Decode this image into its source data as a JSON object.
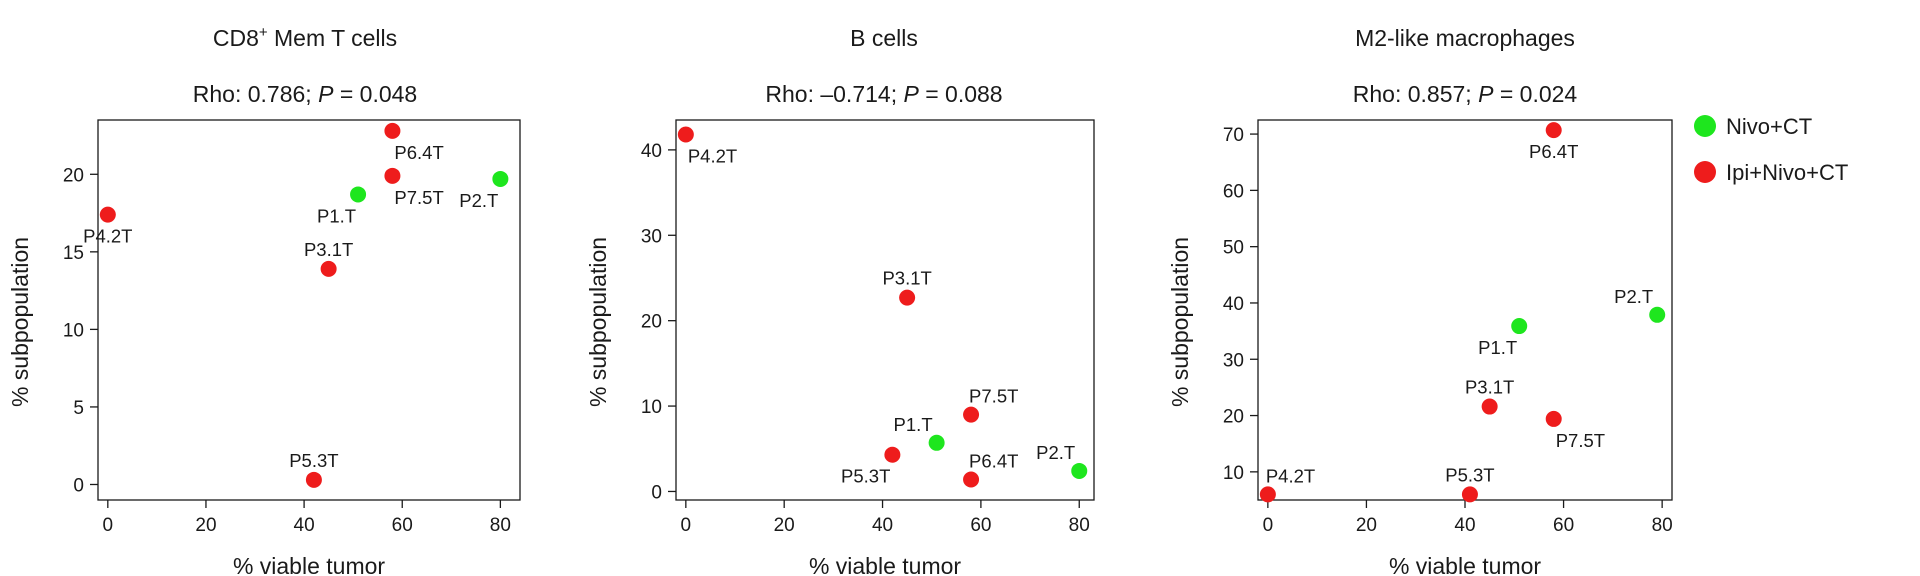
{
  "legend": {
    "position": "right",
    "entries": [
      {
        "name": "Nivo+CT",
        "color": "#1ee61e"
      },
      {
        "name": "Ipi+Nivo+CT",
        "color": "#ee1c1c"
      }
    ]
  },
  "chart_data": [
    {
      "type": "scatter",
      "title": "CD8",
      "title_sup": "+",
      "title_rest": " Mem T cells",
      "subtitle_pre": "Rho: 0.786; ",
      "subtitle_p": "P",
      "subtitle_post": " = 0.048",
      "xlabel": "% viable tumor",
      "ylabel": "% subpopulation",
      "xlim": [
        -2,
        84
      ],
      "ylim": [
        -1,
        23.5
      ],
      "xticks": [
        0,
        20,
        40,
        60,
        80
      ],
      "yticks": [
        0,
        5,
        10,
        15,
        20
      ],
      "grid": false,
      "points": [
        {
          "label": "P4.2T",
          "x": 0,
          "y": 17.4,
          "group": "Ipi+Nivo+CT",
          "label_pos": "below"
        },
        {
          "label": "P3.1T",
          "x": 45,
          "y": 13.9,
          "group": "Ipi+Nivo+CT",
          "label_pos": "above"
        },
        {
          "label": "P5.3T",
          "x": 42,
          "y": 0.3,
          "group": "Ipi+Nivo+CT",
          "label_pos": "above"
        },
        {
          "label": "P1.T",
          "x": 51,
          "y": 18.7,
          "group": "Nivo+CT",
          "label_pos": "below-left"
        },
        {
          "label": "P6.4T",
          "x": 58,
          "y": 22.8,
          "group": "Ipi+Nivo+CT",
          "label_pos": "below-right"
        },
        {
          "label": "P7.5T",
          "x": 58,
          "y": 19.9,
          "group": "Ipi+Nivo+CT",
          "label_pos": "below-right"
        },
        {
          "label": "P2.T",
          "x": 80,
          "y": 19.7,
          "group": "Nivo+CT",
          "label_pos": "below-left"
        }
      ]
    },
    {
      "type": "scatter",
      "title": "B cells",
      "title_sup": "",
      "title_rest": "",
      "subtitle_pre": "Rho: –0.714; ",
      "subtitle_p": "P",
      "subtitle_post": " = 0.088",
      "xlabel": "% viable tumor",
      "ylabel": "% subpopulation",
      "xlim": [
        -2,
        83
      ],
      "ylim": [
        -1,
        43.5
      ],
      "xticks": [
        0,
        20,
        40,
        60,
        80
      ],
      "yticks": [
        0,
        10,
        20,
        30,
        40
      ],
      "grid": false,
      "points": [
        {
          "label": "P4.2T",
          "x": 0,
          "y": 41.8,
          "group": "Ipi+Nivo+CT",
          "label_pos": "below-right"
        },
        {
          "label": "P3.1T",
          "x": 45,
          "y": 22.7,
          "group": "Ipi+Nivo+CT",
          "label_pos": "above"
        },
        {
          "label": "P7.5T",
          "x": 58,
          "y": 9.0,
          "group": "Ipi+Nivo+CT",
          "label_pos": "above-right"
        },
        {
          "label": "P1.T",
          "x": 51,
          "y": 5.7,
          "group": "Nivo+CT",
          "label_pos": "above-left"
        },
        {
          "label": "P5.3T",
          "x": 42,
          "y": 4.3,
          "group": "Ipi+Nivo+CT",
          "label_pos": "below-left"
        },
        {
          "label": "P6.4T",
          "x": 58,
          "y": 1.4,
          "group": "Ipi+Nivo+CT",
          "label_pos": "above-right"
        },
        {
          "label": "P2.T",
          "x": 80,
          "y": 2.4,
          "group": "Nivo+CT",
          "label_pos": "above-left"
        }
      ]
    },
    {
      "type": "scatter",
      "title": "M2-like macrophages",
      "title_sup": "",
      "title_rest": "",
      "subtitle_pre": "Rho: 0.857; ",
      "subtitle_p": "P",
      "subtitle_post": " = 0.024",
      "xlabel": "% viable tumor",
      "ylabel": "% subpopulation",
      "xlim": [
        -2,
        82
      ],
      "ylim": [
        5,
        72.5
      ],
      "xticks": [
        0,
        20,
        40,
        60,
        80
      ],
      "yticks": [
        10,
        20,
        30,
        40,
        50,
        60,
        70
      ],
      "grid": false,
      "points": [
        {
          "label": "P6.4T",
          "x": 58,
          "y": 70.7,
          "group": "Ipi+Nivo+CT",
          "label_pos": "below"
        },
        {
          "label": "P2.T",
          "x": 79,
          "y": 37.9,
          "group": "Nivo+CT",
          "label_pos": "above-left"
        },
        {
          "label": "P1.T",
          "x": 51,
          "y": 35.9,
          "group": "Nivo+CT",
          "label_pos": "below-left"
        },
        {
          "label": "P3.1T",
          "x": 45,
          "y": 21.6,
          "group": "Ipi+Nivo+CT",
          "label_pos": "above"
        },
        {
          "label": "P7.5T",
          "x": 58,
          "y": 19.4,
          "group": "Ipi+Nivo+CT",
          "label_pos": "below-right"
        },
        {
          "label": "P4.2T",
          "x": 0,
          "y": 6.0,
          "group": "Ipi+Nivo+CT",
          "label_pos": "above-right"
        },
        {
          "label": "P5.3T",
          "x": 41,
          "y": 6.0,
          "group": "Ipi+Nivo+CT",
          "label_pos": "above"
        }
      ]
    }
  ]
}
